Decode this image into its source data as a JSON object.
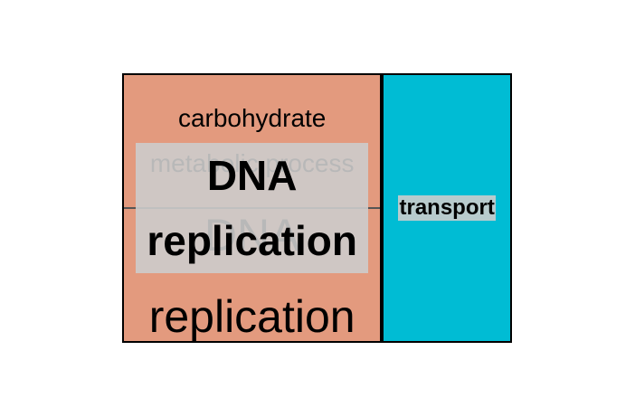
{
  "chart_data": {
    "type": "treemap",
    "groups": [
      {
        "name": "DNA replication",
        "color": "#e39a7e",
        "children": [
          {
            "name": "carbohydrate metabolic process",
            "value": 1
          },
          {
            "name": "DNA replication",
            "value": 1
          }
        ]
      },
      {
        "name": "transport",
        "color": "#00bcd4",
        "children": [
          {
            "name": "transport",
            "value": 1
          }
        ]
      }
    ]
  }
}
